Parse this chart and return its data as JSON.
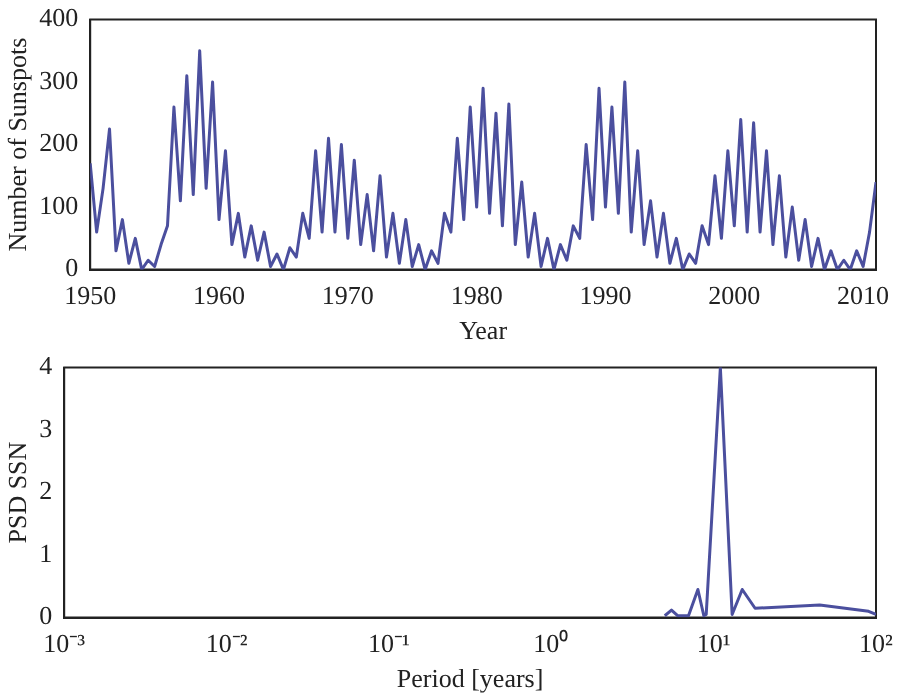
{
  "chart_data": [
    {
      "type": "line",
      "xlabel": "Year",
      "ylabel": "Number of Sunspots",
      "xlim": [
        1950,
        2011
      ],
      "xticks": [
        1950,
        1960,
        1970,
        1980,
        1990,
        2000,
        2010
      ],
      "ylim": [
        0,
        400
      ],
      "yticks": [
        0,
        100,
        200,
        300,
        400
      ],
      "grid": false,
      "legend": false,
      "marker": "none",
      "series": [
        {
          "color": "#4b4f9e",
          "x": [
            1950.0,
            1950.5,
            1951.0,
            1951.5,
            1952.0,
            1952.5,
            1953.0,
            1953.5,
            1954.0,
            1954.5,
            1955.0,
            1955.5,
            1956.0,
            1956.5,
            1957.0,
            1957.5,
            1958.0,
            1958.5,
            1959.0,
            1959.5,
            1960.0,
            1960.5,
            1961.0,
            1961.5,
            1962.0,
            1962.5,
            1963.0,
            1963.5,
            1964.0,
            1964.5,
            1965.0,
            1965.5,
            1966.0,
            1966.5,
            1967.0,
            1967.5,
            1968.0,
            1968.5,
            1969.0,
            1969.5,
            1970.0,
            1970.5,
            1971.0,
            1971.5,
            1972.0,
            1972.5,
            1973.0,
            1973.5,
            1974.0,
            1974.5,
            1975.0,
            1975.5,
            1976.0,
            1976.5,
            1977.0,
            1977.5,
            1978.0,
            1978.5,
            1979.0,
            1979.5,
            1980.0,
            1980.5,
            1981.0,
            1981.5,
            1982.0,
            1982.5,
            1983.0,
            1983.5,
            1984.0,
            1984.5,
            1985.0,
            1985.5,
            1986.0,
            1986.5,
            1987.0,
            1987.5,
            1988.0,
            1988.5,
            1989.0,
            1989.5,
            1990.0,
            1990.5,
            1991.0,
            1991.5,
            1992.0,
            1992.5,
            1993.0,
            1993.5,
            1994.0,
            1994.5,
            1995.0,
            1995.5,
            1996.0,
            1996.5,
            1997.0,
            1997.5,
            1998.0,
            1998.5,
            1999.0,
            1999.5,
            2000.0,
            2000.5,
            2001.0,
            2001.5,
            2002.0,
            2002.5,
            2003.0,
            2003.5,
            2004.0,
            2004.5,
            2005.0,
            2005.5,
            2006.0,
            2006.5,
            2007.0,
            2007.5,
            2008.0,
            2008.5,
            2009.0,
            2009.5,
            2010.0,
            2010.5,
            2011.0
          ],
          "values": [
            170,
            60,
            130,
            225,
            30,
            80,
            10,
            50,
            0,
            15,
            5,
            40,
            70,
            260,
            110,
            310,
            120,
            350,
            130,
            300,
            80,
            190,
            40,
            90,
            20,
            70,
            15,
            60,
            5,
            25,
            0,
            35,
            20,
            90,
            50,
            190,
            60,
            210,
            60,
            200,
            50,
            175,
            40,
            120,
            30,
            150,
            20,
            90,
            10,
            80,
            5,
            40,
            0,
            30,
            10,
            90,
            60,
            210,
            80,
            260,
            100,
            290,
            90,
            250,
            70,
            265,
            40,
            140,
            20,
            90,
            5,
            50,
            0,
            40,
            15,
            70,
            50,
            200,
            80,
            290,
            100,
            260,
            90,
            300,
            60,
            190,
            40,
            110,
            20,
            90,
            10,
            50,
            0,
            25,
            10,
            70,
            40,
            150,
            50,
            190,
            70,
            240,
            60,
            235,
            60,
            190,
            40,
            150,
            20,
            100,
            15,
            80,
            5,
            50,
            0,
            30,
            0,
            15,
            0,
            30,
            5,
            60,
            140
          ]
        }
      ]
    },
    {
      "type": "line",
      "xlabel": "Period [years]",
      "ylabel": "PSD SSN",
      "log": "x",
      "xlim": [
        0.001,
        100
      ],
      "xticks": [
        {
          "value": 0.001,
          "label": "10⁻³"
        },
        {
          "value": 0.01,
          "label": "10⁻²"
        },
        {
          "value": 0.1,
          "label": "10⁻¹"
        },
        {
          "value": 1,
          "label": "10⁰"
        },
        {
          "value": 10,
          "label": "10¹"
        },
        {
          "value": 100,
          "label": "10²"
        }
      ],
      "ylim": [
        0,
        4
      ],
      "yticks": [
        0,
        1,
        2,
        3,
        4
      ],
      "grid": false,
      "legend": false,
      "marker": "none",
      "series": [
        {
          "color": "#4b4f9e",
          "x": [
            5,
            5.5,
            6,
            7,
            8,
            8.7,
            9,
            11,
            13,
            15,
            18,
            45,
            90,
            100
          ],
          "values": [
            0.03,
            0.12,
            0.03,
            0.03,
            0.45,
            0.03,
            0.05,
            4,
            0.05,
            0.45,
            0.15,
            0.2,
            0.1,
            0.05
          ]
        }
      ]
    }
  ]
}
